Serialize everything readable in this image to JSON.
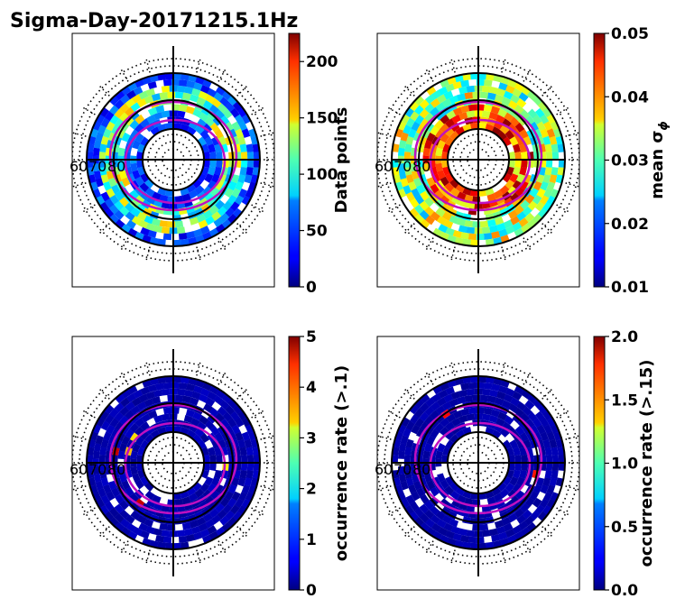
{
  "title": "Sigma-Day-20171215.1Hz",
  "chart_data": [
    {
      "type": "heatmap",
      "projection": "polar",
      "latitude_labels": [
        "60",
        "70",
        "80"
      ],
      "colormap": "jet",
      "colorbar": {
        "label": "Data points",
        "range": [
          0,
          225
        ],
        "ticks": [
          "0",
          "50",
          "100",
          "150",
          "200"
        ]
      }
    },
    {
      "type": "heatmap",
      "projection": "polar",
      "latitude_labels": [
        "60",
        "70",
        "80"
      ],
      "colormap": "jet",
      "colorbar": {
        "label": "mean σ",
        "label_subscript": "ϕ",
        "range": [
          0.01,
          0.05
        ],
        "ticks": [
          "0.01",
          "0.02",
          "0.03",
          "0.04",
          "0.05"
        ]
      }
    },
    {
      "type": "heatmap",
      "projection": "polar",
      "latitude_labels": [
        "60",
        "70",
        "80"
      ],
      "colormap": "jet",
      "colorbar": {
        "label": "occurrence rate (>.1)",
        "range": [
          0,
          5
        ],
        "ticks": [
          "0",
          "1",
          "2",
          "3",
          "4",
          "5"
        ]
      }
    },
    {
      "type": "heatmap",
      "projection": "polar",
      "latitude_labels": [
        "60",
        "70",
        "80"
      ],
      "colormap": "jet",
      "colorbar": {
        "label": "occurrence rate (>.15)",
        "range": [
          0,
          2
        ],
        "ticks": [
          "0.0",
          "0.5",
          "1.0",
          "1.5",
          "2.0"
        ]
      }
    }
  ]
}
